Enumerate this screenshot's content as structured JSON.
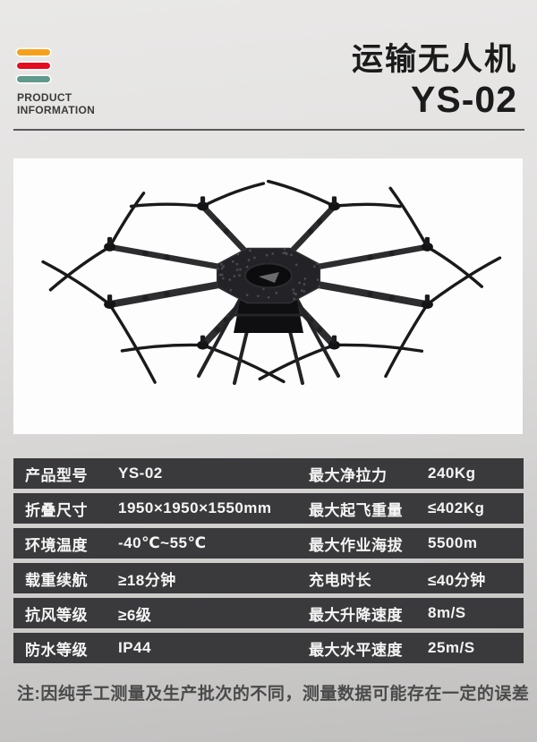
{
  "brand": {
    "tagline_line1": "PRODUCT",
    "tagline_line2": "INFORMATION",
    "logo_bar_colors": [
      "#f6a11c",
      "#e30e20",
      "#5f9a8c"
    ]
  },
  "header": {
    "title": "运输无人机",
    "model": "YS-02"
  },
  "specs": {
    "rows": [
      {
        "left_label": "产品型号",
        "left_value": "YS-02",
        "right_label": "最大净拉力",
        "right_value": "240Kg"
      },
      {
        "left_label": "折叠尺寸",
        "left_value": "1950×1950×1550mm",
        "right_label": "最大起飞重量",
        "right_value": "≤402Kg"
      },
      {
        "left_label": "环境温度",
        "left_value": "-40℃~55℃",
        "right_label": "最大作业海拔",
        "right_value": "5500m"
      },
      {
        "left_label": "载重续航",
        "left_value": "≥18分钟",
        "right_label": "充电时长",
        "right_value": "≤40分钟"
      },
      {
        "left_label": "抗风等级",
        "left_value": "≥6级",
        "right_label": "最大升降速度",
        "right_value": "8m/S"
      },
      {
        "left_label": "防水等级",
        "left_value": "IP44",
        "right_label": "最大水平速度",
        "right_value": "25m/S"
      }
    ]
  },
  "footnote": "注:因纯手工测量及生产批次的不同，测量数据可能存在一定的误差",
  "colors": {
    "row_bg": "#3a3a3c",
    "row_text": "#f5f5f5",
    "page_top": "#e9e8e7",
    "page_bottom": "#c1c0bf",
    "panel_bg": "#fdfdfd",
    "title_text": "#1b1b1b",
    "accent_orange": "#f6a11c",
    "accent_red": "#e30e20",
    "accent_teal": "#5f9a8c"
  }
}
